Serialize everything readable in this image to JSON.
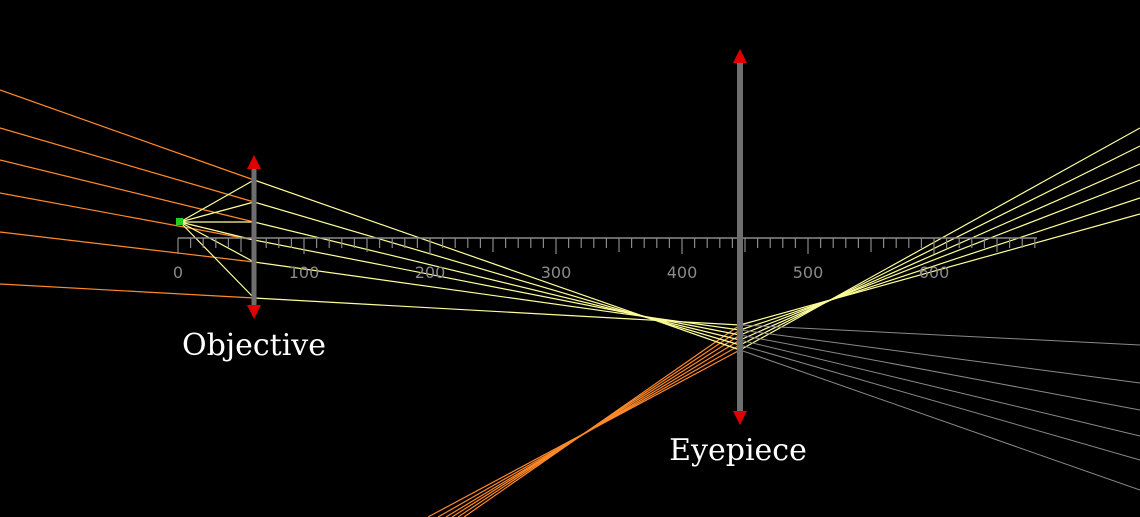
{
  "labels": {
    "objective": "Objective",
    "eyepiece": "Eyepiece"
  },
  "ruler": {
    "tick_labels": [
      "0",
      "100",
      "200",
      "300",
      "400",
      "500",
      "600"
    ]
  },
  "colors": {
    "background": "#000000",
    "ruler": "#8a8a8a",
    "lens": "#6e6e6e",
    "arrow": "#e00000",
    "object": "#22cc22",
    "ray_incoming": "#ff8a2a",
    "ray_bright": "#ffff99",
    "ray_virtual": "#8a8a8a"
  },
  "icons": {
    "lens_tip": "red-arrowhead",
    "object_point": "green-square"
  }
}
